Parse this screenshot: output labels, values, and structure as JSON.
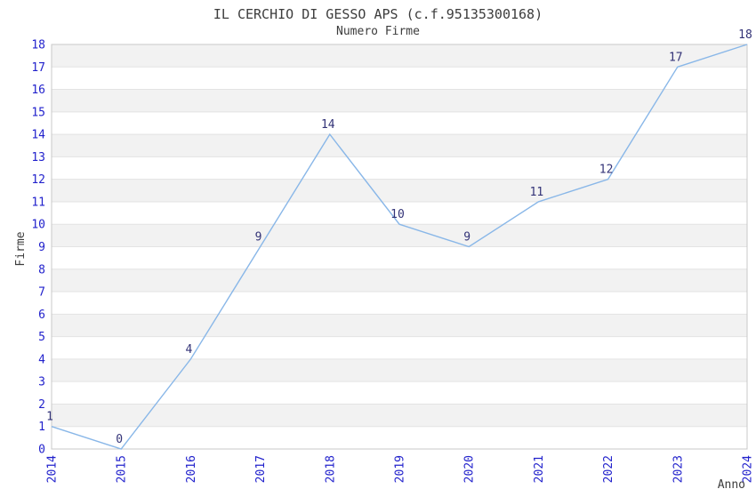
{
  "page": {
    "background": "#ffffff"
  },
  "chart_data": {
    "type": "line",
    "title": "IL CERCHIO DI GESSO APS (c.f.95135300168)",
    "subtitle": "Numero Firme",
    "xlabel": "Anno",
    "ylabel": "Firme",
    "categories": [
      "2014",
      "2015",
      "2016",
      "2017",
      "2018",
      "2019",
      "2020",
      "2021",
      "2022",
      "2023",
      "2024"
    ],
    "series": [
      {
        "name": "Numero Firme",
        "values": [
          1,
          0,
          4,
          9,
          14,
          10,
          9,
          11,
          12,
          17,
          18
        ]
      }
    ],
    "ylim": [
      0,
      18
    ],
    "y_tick_step": 1,
    "grid": "horizontal gridlines with alternating 1-unit gray/white stripes, top stripe gray",
    "legend": "none",
    "x_tick_rotation_deg": -90,
    "point_labels_visible": true,
    "colors": {
      "line": "#89b7e8",
      "point_label": "#333377",
      "tick_label": "#2222cc",
      "title": "#3c3c3c",
      "stripe": "#f2f2f2",
      "gridline": "#e3e3e3",
      "plot_border": "#c8c8c8",
      "background": "#ffffff"
    }
  }
}
